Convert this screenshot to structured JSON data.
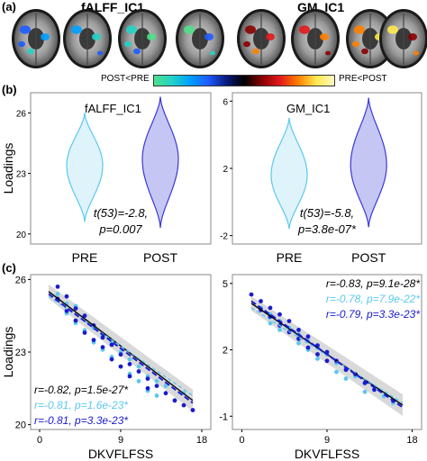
{
  "panel_a": {
    "label": "(a)",
    "title_left": "fALFF_IC1",
    "title_right": "GM_IC1",
    "colorbar_left": "POST<PRE",
    "colorbar_right": "PRE<POST",
    "colors": {
      "cool": [
        "#1e5cff",
        "#00a0ff",
        "#22d3c5",
        "#4fe08a"
      ],
      "hot": [
        "#8b0000",
        "#e31a1c",
        "#ff7f00",
        "#ffe94d"
      ]
    }
  },
  "panel_b": {
    "label": "(b)",
    "ylabel": "Loadings",
    "left": {
      "title": "fALFF_IC1",
      "stat_line1": "t(53)=-2.8,",
      "stat_line2": "p=0.007",
      "xlabels": [
        "PRE",
        "POST"
      ],
      "yticks": [
        "26",
        "23",
        "20"
      ]
    },
    "right": {
      "title": "GM_IC1",
      "stat_line1": "t(53)=-5.8,",
      "stat_line2": "p=3.8e-07*",
      "xlabels": [
        "PRE",
        "POST"
      ],
      "yticks": [
        "6",
        "2",
        "-2"
      ]
    }
  },
  "panel_c": {
    "label": "(c)",
    "ylabel": "Loadings",
    "xlabel": "DKVFLFSS",
    "left": {
      "xticks": [
        "0",
        "9",
        "18"
      ],
      "yticks": [
        "26",
        "23",
        "20"
      ],
      "stats": [
        {
          "text": "r=-0.82, p=1.5e-27*",
          "color": "#000000"
        },
        {
          "text": "r=-0.81, p=1.6e-23*",
          "color": "#5bc8f0"
        },
        {
          "text": "r=-0.81, p=3.3e-23*",
          "color": "#1a1ad0"
        }
      ]
    },
    "right": {
      "xticks": [
        "0",
        "9",
        "18"
      ],
      "yticks": [
        "5",
        "2",
        "-1"
      ],
      "stats": [
        {
          "text": "r=-0.83, p=9.1e-28*",
          "color": "#000000"
        },
        {
          "text": "r=-0.78, p=7.9e-22*",
          "color": "#5bc8f0"
        },
        {
          "text": "r=-0.79, p=3.3e-23*",
          "color": "#1a1ad0"
        }
      ]
    }
  },
  "chart_data": [
    {
      "type": "violin",
      "title": "fALFF_IC1",
      "ylabel": "Loadings",
      "categories": [
        "PRE",
        "POST"
      ],
      "ylim": [
        19.5,
        27
      ],
      "series": [
        {
          "name": "PRE",
          "values": [
            20.6,
            26.0
          ],
          "median": 23.4
        },
        {
          "name": "POST",
          "values": [
            20.3,
            26.8
          ],
          "median": 23.7
        }
      ]
    },
    {
      "type": "violin",
      "title": "GM_IC1",
      "ylabel": "Loadings",
      "categories": [
        "PRE",
        "POST"
      ],
      "ylim": [
        -2.5,
        6.5
      ],
      "series": [
        {
          "name": "PRE",
          "values": [
            -1.6,
            5.0
          ],
          "median": 1.6
        },
        {
          "name": "POST",
          "values": [
            -1.5,
            6.2
          ],
          "median": 2.2
        }
      ]
    },
    {
      "type": "scatter",
      "xlabel": "DKVFLFSS",
      "ylabel": "Loadings",
      "xlim": [
        -1,
        19
      ],
      "ylim": [
        19.8,
        26.2
      ],
      "series": [
        {
          "name": "PRE",
          "color": "#5bc8f0",
          "x": [
            2,
            3,
            3,
            4,
            4,
            5,
            5,
            6,
            6,
            7,
            7,
            8,
            8,
            9,
            9,
            10,
            10,
            11,
            11,
            12,
            12,
            13,
            13,
            14,
            15,
            16
          ],
          "y": [
            25.4,
            25.0,
            24.6,
            24.9,
            24.2,
            24.5,
            23.9,
            24.0,
            23.4,
            23.7,
            23.1,
            23.4,
            22.8,
            23.0,
            22.4,
            22.7,
            22.1,
            22.4,
            21.8,
            22.0,
            21.4,
            21.8,
            21.2,
            21.6,
            21.0,
            21.3
          ]
        },
        {
          "name": "POST",
          "color": "#1a1ad0",
          "x": [
            2,
            2,
            3,
            3,
            4,
            4,
            5,
            5,
            6,
            6,
            7,
            7,
            8,
            8,
            9,
            9,
            10,
            10,
            11,
            12,
            12,
            13,
            14,
            15,
            16,
            17
          ],
          "y": [
            25.7,
            25.2,
            25.3,
            24.7,
            24.8,
            24.3,
            24.5,
            23.8,
            24.1,
            23.5,
            23.6,
            23.2,
            23.3,
            22.7,
            22.9,
            22.4,
            22.5,
            22.0,
            22.2,
            21.9,
            21.5,
            21.6,
            21.3,
            21.0,
            20.8,
            20.6
          ]
        }
      ],
      "fits": [
        {
          "color": "#000000",
          "x": [
            1,
            17
          ],
          "y": [
            25.5,
            21.0
          ]
        },
        {
          "color": "#5bc8f0",
          "x": [
            1,
            17
          ],
          "y": [
            25.3,
            21.2
          ]
        },
        {
          "color": "#1a1ad0",
          "x": [
            1,
            17
          ],
          "y": [
            25.4,
            20.9
          ]
        }
      ]
    },
    {
      "type": "scatter",
      "xlabel": "DKVFLFSS",
      "ylabel": "Loadings",
      "xlim": [
        -1,
        19
      ],
      "ylim": [
        -1.6,
        5.4
      ],
      "series": [
        {
          "name": "PRE",
          "color": "#5bc8f0",
          "x": [
            2,
            3,
            3,
            4,
            4,
            5,
            6,
            6,
            7,
            7,
            8,
            8,
            9,
            10,
            10,
            11,
            11,
            12,
            13,
            13,
            14,
            15,
            16
          ],
          "y": [
            3.9,
            3.6,
            3.2,
            3.3,
            2.9,
            3.0,
            2.7,
            2.3,
            2.4,
            2.0,
            2.1,
            1.6,
            1.8,
            1.4,
            1.0,
            1.1,
            0.7,
            0.8,
            0.5,
            0.1,
            0.2,
            -0.1,
            -0.4
          ]
        },
        {
          "name": "POST",
          "color": "#1a1ad0",
          "x": [
            1,
            2,
            2,
            3,
            3,
            4,
            4,
            5,
            5,
            6,
            6,
            7,
            7,
            8,
            8,
            9,
            9,
            10,
            11,
            12,
            13,
            14,
            16
          ],
          "y": [
            4.5,
            4.2,
            3.8,
            3.9,
            3.5,
            3.6,
            3.1,
            3.3,
            2.8,
            2.9,
            2.5,
            2.6,
            2.1,
            2.2,
            1.8,
            1.9,
            1.5,
            1.5,
            1.1,
            0.9,
            0.5,
            0.2,
            -0.3
          ]
        }
      ],
      "fits": [
        {
          "color": "#000000",
          "x": [
            1,
            17
          ],
          "y": [
            4.1,
            -0.5
          ]
        },
        {
          "color": "#5bc8f0",
          "x": [
            1,
            17
          ],
          "y": [
            3.9,
            -0.4
          ]
        },
        {
          "color": "#1a1ad0",
          "x": [
            1,
            17
          ],
          "y": [
            4.2,
            -0.6
          ]
        }
      ]
    }
  ]
}
